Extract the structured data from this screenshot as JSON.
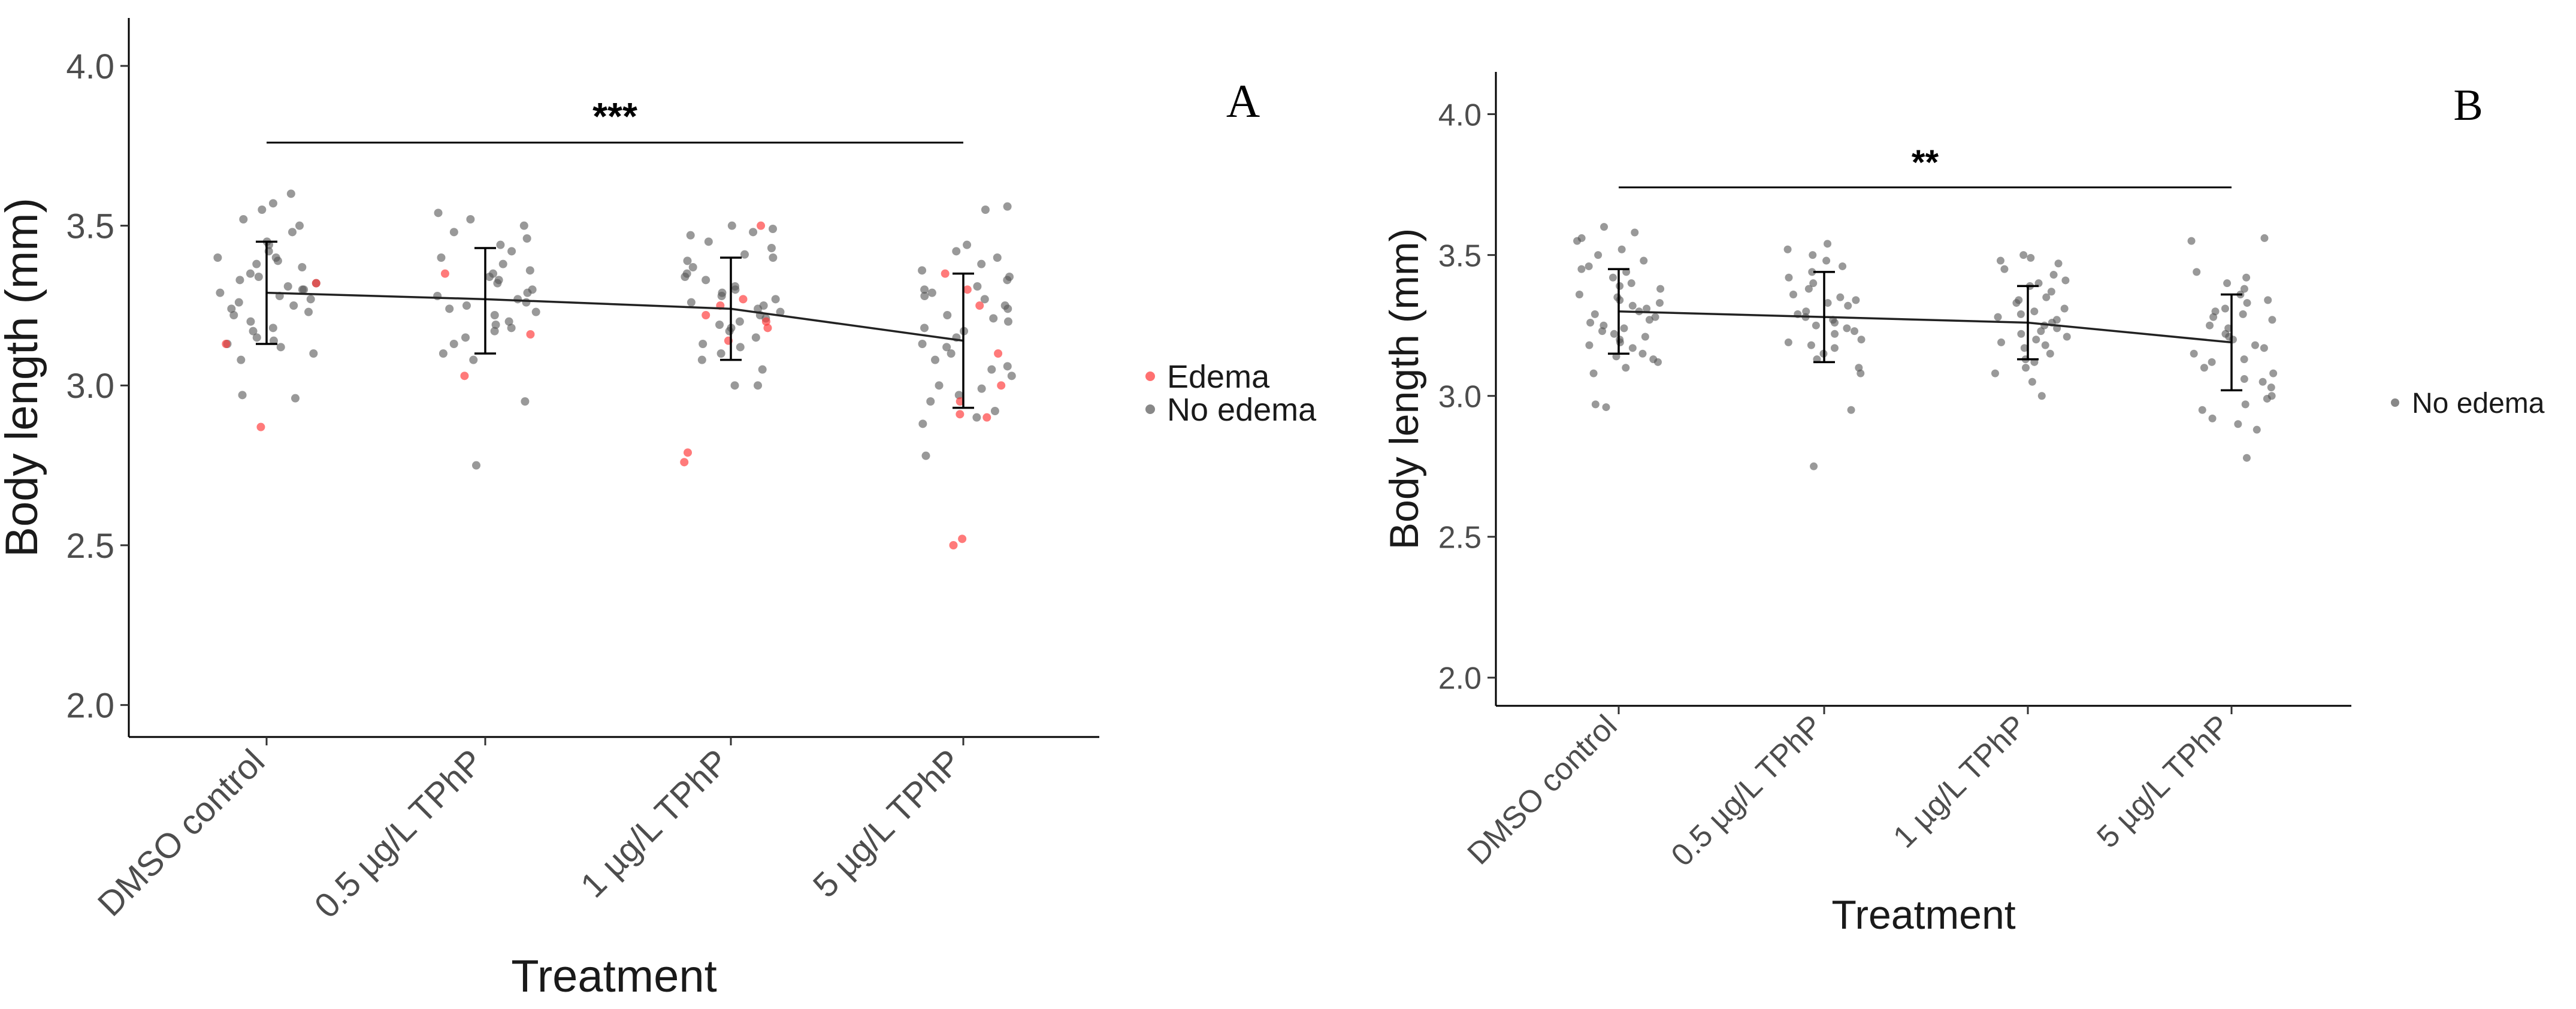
{
  "chart_data": [
    {
      "type": "scatter",
      "panel_label": "A",
      "xlabel": "Treatment",
      "ylabel": "Body length (mm)",
      "categories": [
        "DMSO control",
        "0.5 µg/L TPhP",
        "1 µg/L TPhP",
        "5 µg/L TPhP"
      ],
      "y_ticks": [
        "2.0",
        "2.5",
        "3.0",
        "3.5",
        "4.0"
      ],
      "ylim": [
        1.9,
        4.15
      ],
      "legend": [
        {
          "label": "Edema",
          "color": "#ff3333"
        },
        {
          "label": "No edema",
          "color": "#555555"
        }
      ],
      "significance": {
        "text": "***",
        "from": 0,
        "to": 3,
        "y": 3.76
      },
      "summary": {
        "means": [
          3.29,
          3.27,
          3.24,
          3.14
        ],
        "lower": [
          3.13,
          3.1,
          3.08,
          2.93
        ],
        "upper": [
          3.45,
          3.43,
          3.4,
          3.35
        ]
      },
      "points": {
        "No edema": [
          [
            3.6,
            3.57,
            3.55,
            3.52,
            3.5,
            3.48,
            3.45,
            3.44,
            3.42,
            3.4,
            3.4,
            3.39,
            3.38,
            3.37,
            3.35,
            3.34,
            3.33,
            3.32,
            3.31,
            3.3,
            3.3,
            3.29,
            3.28,
            3.27,
            3.26,
            3.25,
            3.24,
            3.23,
            3.22,
            3.2,
            3.18,
            3.17,
            3.15,
            3.14,
            3.13,
            3.12,
            3.1,
            3.08,
            2.97,
            2.96
          ],
          [
            3.54,
            3.52,
            3.5,
            3.48,
            3.46,
            3.44,
            3.42,
            3.4,
            3.38,
            3.36,
            3.35,
            3.34,
            3.33,
            3.32,
            3.3,
            3.29,
            3.28,
            3.27,
            3.26,
            3.25,
            3.24,
            3.23,
            3.22,
            3.2,
            3.19,
            3.18,
            3.17,
            3.15,
            3.13,
            3.1,
            3.08,
            2.95,
            2.75
          ],
          [
            3.5,
            3.49,
            3.48,
            3.47,
            3.45,
            3.43,
            3.41,
            3.4,
            3.39,
            3.37,
            3.35,
            3.34,
            3.33,
            3.31,
            3.3,
            3.29,
            3.28,
            3.27,
            3.26,
            3.25,
            3.24,
            3.23,
            3.22,
            3.21,
            3.2,
            3.19,
            3.18,
            3.17,
            3.15,
            3.13,
            3.12,
            3.1,
            3.08,
            3.05,
            3.0,
            3.0
          ],
          [
            3.56,
            3.55,
            3.44,
            3.42,
            3.4,
            3.38,
            3.36,
            3.34,
            3.33,
            3.31,
            3.3,
            3.29,
            3.28,
            3.27,
            3.25,
            3.24,
            3.22,
            3.21,
            3.2,
            3.18,
            3.17,
            3.15,
            3.13,
            3.12,
            3.1,
            3.08,
            3.06,
            3.05,
            3.03,
            3.0,
            2.99,
            2.97,
            2.95,
            2.92,
            2.9,
            2.88,
            2.78
          ]
        ],
        "Edema": [
          [
            3.32,
            3.13,
            2.87
          ],
          [
            3.35,
            3.16,
            3.03
          ],
          [
            3.5,
            3.27,
            3.25,
            3.22,
            3.2,
            3.18,
            3.14,
            2.79,
            2.76
          ],
          [
            3.35,
            3.3,
            3.25,
            3.1,
            3.0,
            2.95,
            2.91,
            2.9,
            2.52,
            2.5
          ]
        ]
      }
    },
    {
      "type": "scatter",
      "panel_label": "B",
      "xlabel": "Treatment",
      "ylabel": "Body length (mm)",
      "categories": [
        "DMSO control",
        "0.5 µg/L TPhP",
        "1 µg/L TPhP",
        "5 µg/L TPhP"
      ],
      "y_ticks": [
        "2.0",
        "2.5",
        "3.0",
        "3.5",
        "4.0"
      ],
      "ylim": [
        1.9,
        4.15
      ],
      "legend": [
        {
          "label": "No edema",
          "color": "#555555"
        }
      ],
      "significance": {
        "text": "**",
        "from": 0,
        "to": 3,
        "y": 3.74
      },
      "summary": {
        "means": [
          3.3,
          3.28,
          3.26,
          3.19
        ],
        "lower": [
          3.15,
          3.12,
          3.13,
          3.02
        ],
        "upper": [
          3.45,
          3.44,
          3.39,
          3.36
        ]
      },
      "points": {
        "No edema": [
          [
            3.6,
            3.58,
            3.56,
            3.55,
            3.52,
            3.5,
            3.48,
            3.46,
            3.45,
            3.44,
            3.42,
            3.4,
            3.39,
            3.38,
            3.36,
            3.35,
            3.34,
            3.33,
            3.32,
            3.31,
            3.3,
            3.29,
            3.28,
            3.27,
            3.26,
            3.25,
            3.24,
            3.23,
            3.22,
            3.21,
            3.2,
            3.19,
            3.18,
            3.17,
            3.15,
            3.14,
            3.13,
            3.12,
            3.1,
            3.08,
            2.97,
            2.96
          ],
          [
            3.54,
            3.52,
            3.5,
            3.48,
            3.46,
            3.44,
            3.42,
            3.4,
            3.38,
            3.36,
            3.35,
            3.34,
            3.33,
            3.32,
            3.3,
            3.29,
            3.28,
            3.27,
            3.26,
            3.25,
            3.24,
            3.23,
            3.22,
            3.2,
            3.19,
            3.18,
            3.17,
            3.15,
            3.13,
            3.1,
            3.08,
            2.95,
            2.75
          ],
          [
            3.5,
            3.49,
            3.48,
            3.47,
            3.45,
            3.43,
            3.41,
            3.4,
            3.39,
            3.37,
            3.35,
            3.34,
            3.33,
            3.31,
            3.3,
            3.29,
            3.28,
            3.27,
            3.26,
            3.25,
            3.24,
            3.23,
            3.22,
            3.21,
            3.2,
            3.19,
            3.18,
            3.17,
            3.15,
            3.13,
            3.12,
            3.1,
            3.08,
            3.05,
            3.0
          ],
          [
            3.56,
            3.55,
            3.44,
            3.42,
            3.4,
            3.38,
            3.36,
            3.34,
            3.33,
            3.31,
            3.3,
            3.29,
            3.28,
            3.27,
            3.25,
            3.24,
            3.22,
            3.21,
            3.2,
            3.18,
            3.17,
            3.15,
            3.13,
            3.12,
            3.1,
            3.08,
            3.06,
            3.05,
            3.03,
            3.0,
            2.99,
            2.97,
            2.95,
            2.92,
            2.9,
            2.88,
            2.78
          ]
        ]
      }
    }
  ]
}
